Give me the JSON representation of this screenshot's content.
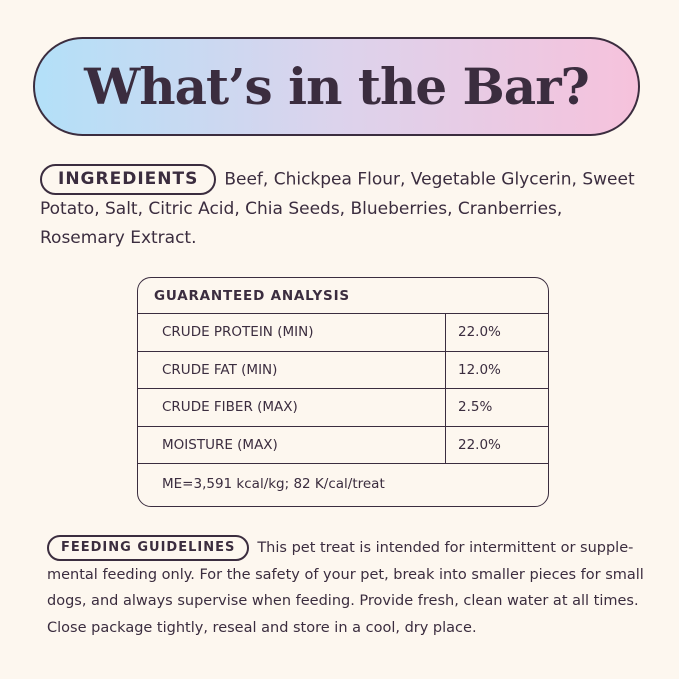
{
  "title": "What’s in the Bar?",
  "ingredients": {
    "label": "INGREDIENTS",
    "text": "Beef, Chickpea Flour, Vegetable Glycerin, Sweet Potato, Salt, Citric Acid, Chia Seeds, Blueberries, Cranberries, Rosemary Extract."
  },
  "analysis": {
    "header": "GUARANTEED ANALYSIS",
    "rows": [
      {
        "name": "CRUDE PROTEIN (MIN)",
        "value": "22.0%"
      },
      {
        "name": "CRUDE FAT (MIN)",
        "value": "12.0%"
      },
      {
        "name": "CRUDE FIBER (MAX)",
        "value": "2.5%"
      },
      {
        "name": "MOISTURE (MAX)",
        "value": "22.0%"
      }
    ],
    "footer": "ME=3,591 kcal/kg; 82 K/cal/treat"
  },
  "feeding": {
    "label": "FEEDING GUIDELINES",
    "text": "This pet treat is intended for intermittent or supple-mental feeding only. For the safety of your pet, break into smaller pieces for small dogs, and always supervise when feeding. Provide fresh, clean water at all times. Close package tightly, reseal and store in a cool, dry place."
  },
  "colors": {
    "text": "#3b2d3f",
    "background": "#fdf7ef",
    "gradient_start": "#b3e0f8",
    "gradient_end": "#f6c2dc"
  }
}
